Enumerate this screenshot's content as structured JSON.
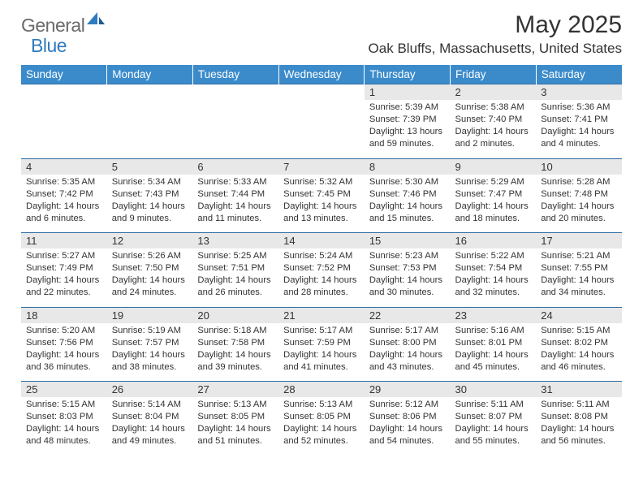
{
  "logo": {
    "text1": "General",
    "text2": "Blue"
  },
  "title": "May 2025",
  "location": "Oak Bluffs, Massachusetts, United States",
  "colors": {
    "header_bg": "#3b8bcb",
    "header_text": "#ffffff",
    "daynum_bg": "#e8e8e8",
    "border": "#2f6ca3",
    "logo_gray": "#6a6a6a",
    "logo_blue": "#2f7ac0",
    "text": "#333333",
    "background": "#ffffff"
  },
  "typography": {
    "month_title_size": 30,
    "location_size": 17,
    "dayheader_size": 13.5,
    "daynum_size": 13,
    "detail_size": 11.2,
    "logo_size": 23
  },
  "day_headers": [
    "Sunday",
    "Monday",
    "Tuesday",
    "Wednesday",
    "Thursday",
    "Friday",
    "Saturday"
  ],
  "weeks": [
    [
      null,
      null,
      null,
      null,
      {
        "n": "1",
        "sr": "5:39 AM",
        "ss": "7:39 PM",
        "dl": "13 hours and 59 minutes."
      },
      {
        "n": "2",
        "sr": "5:38 AM",
        "ss": "7:40 PM",
        "dl": "14 hours and 2 minutes."
      },
      {
        "n": "3",
        "sr": "5:36 AM",
        "ss": "7:41 PM",
        "dl": "14 hours and 4 minutes."
      }
    ],
    [
      {
        "n": "4",
        "sr": "5:35 AM",
        "ss": "7:42 PM",
        "dl": "14 hours and 6 minutes."
      },
      {
        "n": "5",
        "sr": "5:34 AM",
        "ss": "7:43 PM",
        "dl": "14 hours and 9 minutes."
      },
      {
        "n": "6",
        "sr": "5:33 AM",
        "ss": "7:44 PM",
        "dl": "14 hours and 11 minutes."
      },
      {
        "n": "7",
        "sr": "5:32 AM",
        "ss": "7:45 PM",
        "dl": "14 hours and 13 minutes."
      },
      {
        "n": "8",
        "sr": "5:30 AM",
        "ss": "7:46 PM",
        "dl": "14 hours and 15 minutes."
      },
      {
        "n": "9",
        "sr": "5:29 AM",
        "ss": "7:47 PM",
        "dl": "14 hours and 18 minutes."
      },
      {
        "n": "10",
        "sr": "5:28 AM",
        "ss": "7:48 PM",
        "dl": "14 hours and 20 minutes."
      }
    ],
    [
      {
        "n": "11",
        "sr": "5:27 AM",
        "ss": "7:49 PM",
        "dl": "14 hours and 22 minutes."
      },
      {
        "n": "12",
        "sr": "5:26 AM",
        "ss": "7:50 PM",
        "dl": "14 hours and 24 minutes."
      },
      {
        "n": "13",
        "sr": "5:25 AM",
        "ss": "7:51 PM",
        "dl": "14 hours and 26 minutes."
      },
      {
        "n": "14",
        "sr": "5:24 AM",
        "ss": "7:52 PM",
        "dl": "14 hours and 28 minutes."
      },
      {
        "n": "15",
        "sr": "5:23 AM",
        "ss": "7:53 PM",
        "dl": "14 hours and 30 minutes."
      },
      {
        "n": "16",
        "sr": "5:22 AM",
        "ss": "7:54 PM",
        "dl": "14 hours and 32 minutes."
      },
      {
        "n": "17",
        "sr": "5:21 AM",
        "ss": "7:55 PM",
        "dl": "14 hours and 34 minutes."
      }
    ],
    [
      {
        "n": "18",
        "sr": "5:20 AM",
        "ss": "7:56 PM",
        "dl": "14 hours and 36 minutes."
      },
      {
        "n": "19",
        "sr": "5:19 AM",
        "ss": "7:57 PM",
        "dl": "14 hours and 38 minutes."
      },
      {
        "n": "20",
        "sr": "5:18 AM",
        "ss": "7:58 PM",
        "dl": "14 hours and 39 minutes."
      },
      {
        "n": "21",
        "sr": "5:17 AM",
        "ss": "7:59 PM",
        "dl": "14 hours and 41 minutes."
      },
      {
        "n": "22",
        "sr": "5:17 AM",
        "ss": "8:00 PM",
        "dl": "14 hours and 43 minutes."
      },
      {
        "n": "23",
        "sr": "5:16 AM",
        "ss": "8:01 PM",
        "dl": "14 hours and 45 minutes."
      },
      {
        "n": "24",
        "sr": "5:15 AM",
        "ss": "8:02 PM",
        "dl": "14 hours and 46 minutes."
      }
    ],
    [
      {
        "n": "25",
        "sr": "5:15 AM",
        "ss": "8:03 PM",
        "dl": "14 hours and 48 minutes."
      },
      {
        "n": "26",
        "sr": "5:14 AM",
        "ss": "8:04 PM",
        "dl": "14 hours and 49 minutes."
      },
      {
        "n": "27",
        "sr": "5:13 AM",
        "ss": "8:05 PM",
        "dl": "14 hours and 51 minutes."
      },
      {
        "n": "28",
        "sr": "5:13 AM",
        "ss": "8:05 PM",
        "dl": "14 hours and 52 minutes."
      },
      {
        "n": "29",
        "sr": "5:12 AM",
        "ss": "8:06 PM",
        "dl": "14 hours and 54 minutes."
      },
      {
        "n": "30",
        "sr": "5:11 AM",
        "ss": "8:07 PM",
        "dl": "14 hours and 55 minutes."
      },
      {
        "n": "31",
        "sr": "5:11 AM",
        "ss": "8:08 PM",
        "dl": "14 hours and 56 minutes."
      }
    ]
  ],
  "labels": {
    "sunrise": "Sunrise: ",
    "sunset": "Sunset: ",
    "daylight": "Daylight: "
  }
}
